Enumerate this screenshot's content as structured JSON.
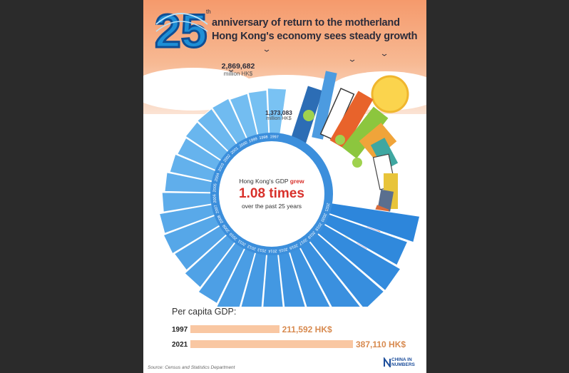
{
  "header": {
    "badge_number": "25",
    "badge_suffix": "th",
    "line1": "anniversary of return to the motherland",
    "line2": "Hong Kong's economy sees steady growth"
  },
  "chart_data": {
    "type": "bar",
    "layout": "radial",
    "title": "",
    "categories": [
      "1997",
      "1998",
      "1999",
      "2000",
      "2001",
      "2002",
      "2003",
      "2004",
      "2005",
      "2006",
      "2007",
      "2008",
      "2009",
      "2010",
      "2011",
      "2012",
      "2013",
      "2014",
      "2015",
      "2016",
      "2017",
      "2018",
      "2019",
      "2020",
      "2021"
    ],
    "series": [
      {
        "values": [
          1373083,
          1308074,
          1285946,
          1337501,
          1321142,
          1297341,
          1256669,
          1316949,
          1412125,
          1503351,
          1650756,
          1707487,
          1659245,
          1776332,
          1934430,
          2037059,
          2138658,
          2260005,
          2398280,
          2490666,
          2659384,
          2835162,
          2844573,
          2675409,
          2869682
        ],
        "unit": "million HK$"
      }
    ],
    "first_label": {
      "value": "1,373,083",
      "unit": "million HK$"
    },
    "last_label": {
      "value": "2,869,682",
      "unit": "million HK$"
    },
    "center": {
      "prefix": "Hong Kong's GDP",
      "verb": "grew",
      "times": "1.08 times",
      "suffix": "over the past 25 years"
    }
  },
  "per_capita": {
    "title": "Per capita GDP:",
    "rows": [
      {
        "year": "1997",
        "value": 211592,
        "label": "211,592 HK$"
      },
      {
        "year": "2021",
        "value": 387110,
        "label": "387,110 HK$"
      }
    ]
  },
  "source": "Source: Census and Statistics Department",
  "logo": {
    "line1": "CHINA IN",
    "line2": "NUMBERS"
  },
  "colors": {
    "sky_top": "#f59a6c",
    "bar_dark": "#2d86db",
    "bar_light": "#79c2f3",
    "accent_red": "#d8312b",
    "per_capita_bar": "#f9c7a2",
    "per_capita_text": "#d88a4f"
  }
}
